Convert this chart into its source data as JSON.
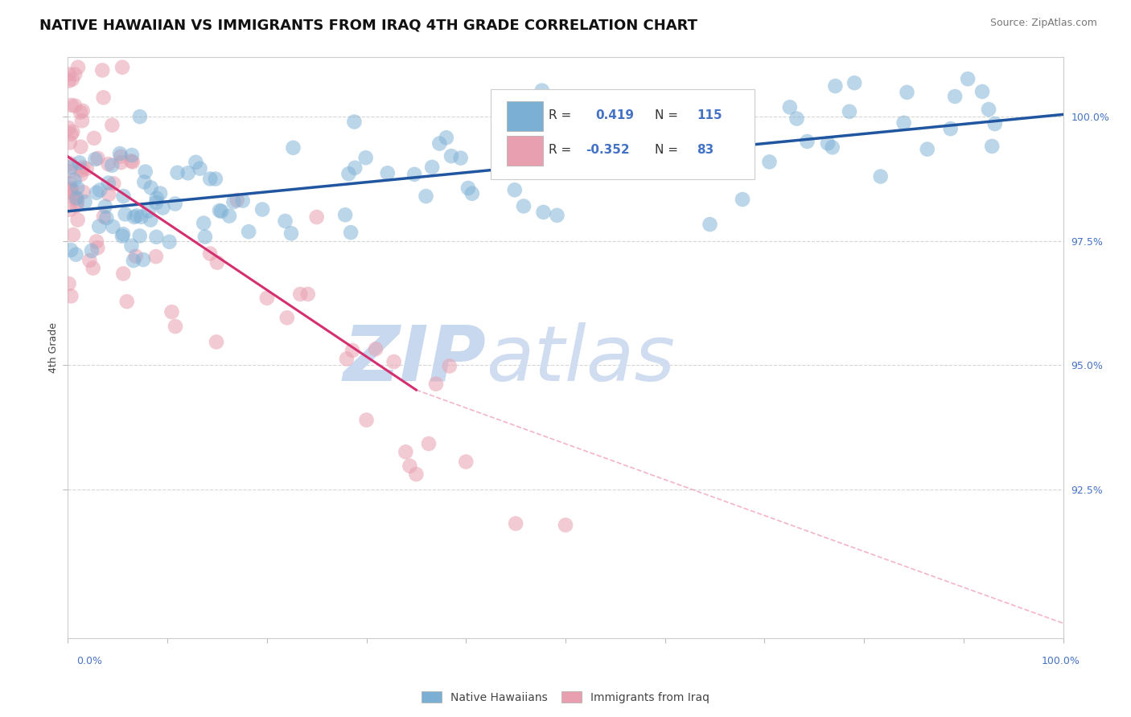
{
  "title": "NATIVE HAWAIIAN VS IMMIGRANTS FROM IRAQ 4TH GRADE CORRELATION CHART",
  "source": "Source: ZipAtlas.com",
  "ylabel": "4th Grade",
  "yticks": [
    92.5,
    95.0,
    97.5,
    100.0
  ],
  "ytick_labels": [
    "92.5%",
    "95.0%",
    "97.5%",
    "100.0%"
  ],
  "xmin": 0.0,
  "xmax": 100.0,
  "ymin": 89.5,
  "ymax": 101.2,
  "blue_R": 0.419,
  "blue_N": 115,
  "pink_R": -0.352,
  "pink_N": 83,
  "blue_color": "#7bafd4",
  "pink_color": "#e8a0b0",
  "blue_line_color": "#2055a0",
  "pink_line_color": "#d43070",
  "pink_dash_color": "#f0a0c0",
  "legend_label_blue": "Native Hawaiians",
  "legend_label_pink": "Immigrants from Iraq",
  "watermark_zip": "ZIP",
  "watermark_atlas": "atlas",
  "watermark_color": "#c8d8ee",
  "background_color": "#ffffff",
  "title_fontsize": 13,
  "source_fontsize": 9,
  "axis_label_fontsize": 9,
  "tick_label_fontsize": 9,
  "legend_fontsize": 11,
  "blue_line_start_x": 0,
  "blue_line_start_y": 98.1,
  "blue_line_end_x": 100,
  "blue_line_end_y": 100.05,
  "pink_line_start_x": 0,
  "pink_line_start_y": 99.2,
  "pink_line_end_x": 35,
  "pink_line_end_y": 94.5,
  "pink_dash_start_x": 35,
  "pink_dash_start_y": 94.5,
  "pink_dash_end_x": 100,
  "pink_dash_end_y": 89.8,
  "grid_color": "#cccccc",
  "grid_linestyle": "--",
  "spine_color": "#cccccc"
}
